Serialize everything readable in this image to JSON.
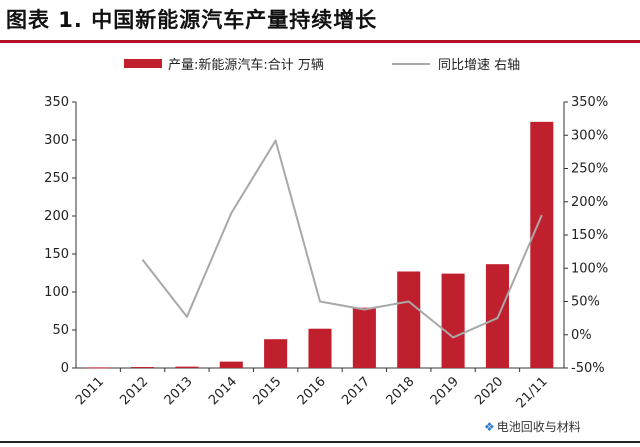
{
  "header": {
    "title": "图表 1.   中国新能源汽车产量持续增长"
  },
  "legend": {
    "bar_label": "产量:新能源汽车:合计 万辆",
    "line_label": "同比增速 右轴",
    "bar_color": "#c0202e",
    "line_color": "#a8a8a8"
  },
  "watermark": {
    "text": "电池回收与材料",
    "icon": "wechat-icon"
  },
  "chart_data": {
    "type": "bar",
    "title": "图表 1.   中国新能源汽车产量持续增长",
    "xlabel": "",
    "ylabel": "",
    "categories": [
      "2011",
      "2012",
      "2013",
      "2014",
      "2015",
      "2016",
      "2017",
      "2018",
      "2019",
      "2020",
      "21/11"
    ],
    "series": [
      {
        "name": "产量:新能源汽车:合计 万辆",
        "type": "bar",
        "axis": "left",
        "values": [
          0.8,
          1.3,
          1.8,
          8.4,
          37.9,
          51.7,
          79.4,
          127.0,
          124.2,
          136.6,
          323.9
        ]
      },
      {
        "name": "同比增速 右轴",
        "type": "line",
        "axis": "right",
        "values": [
          null,
          113,
          27,
          183,
          292,
          50,
          38,
          50,
          -4,
          25,
          180
        ]
      }
    ],
    "ylim": [
      0,
      350
    ],
    "y_ticks": [
      0,
      50,
      100,
      150,
      200,
      250,
      300,
      350
    ],
    "y2lim": [
      -50,
      350
    ],
    "y2_ticks": [
      "-50%",
      "0%",
      "50%",
      "100%",
      "150%",
      "200%",
      "250%",
      "300%",
      "350%"
    ],
    "legend_position": "top",
    "grid": false
  }
}
